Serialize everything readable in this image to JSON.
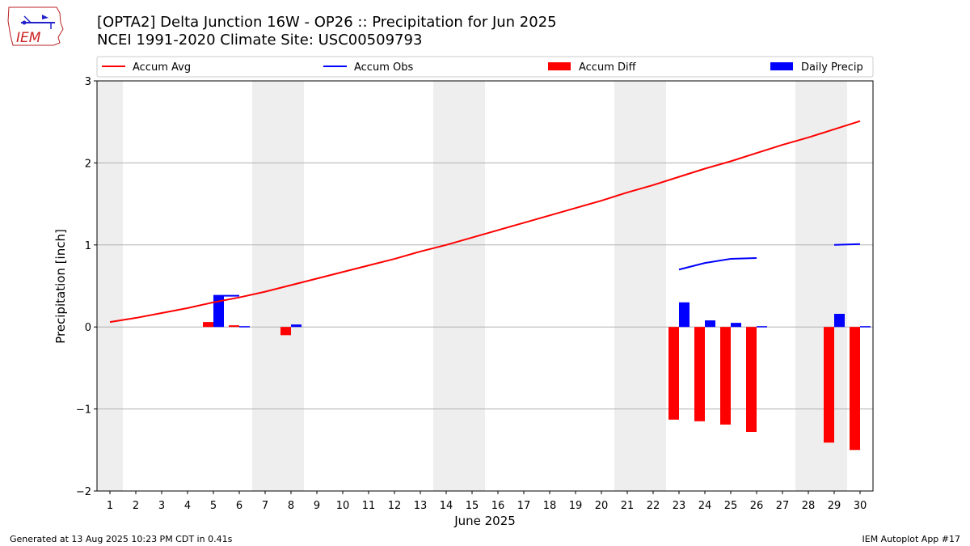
{
  "logo": {
    "text": "IEM"
  },
  "title_line1": "[OPTA2] Delta Junction 16W - OP26 :: Precipitation for Jun 2025",
  "title_line2": "NCEI 1991-2020 Climate Site: USC00509793",
  "footer": {
    "left": "Generated at 13 Aug 2025 10:23 PM CDT in 0.41s",
    "right": "IEM Autoplot App #17"
  },
  "colors": {
    "avg": "#ff0000",
    "obs": "#0000ff",
    "diff": "#ff0000",
    "precip": "#0000ff",
    "weekend_shade": "#eeeeee"
  },
  "chart_data": {
    "type": "bar",
    "xlabel": "June 2025",
    "ylabel": "Precipitation [inch]",
    "ylim": [
      -2,
      3
    ],
    "yticks": [
      -2,
      -1,
      0,
      1,
      2,
      3
    ],
    "ytick_labels": [
      "−2",
      "−1",
      "0",
      "1",
      "2",
      "3"
    ],
    "days": [
      1,
      2,
      3,
      4,
      5,
      6,
      7,
      8,
      9,
      10,
      11,
      12,
      13,
      14,
      15,
      16,
      17,
      18,
      19,
      20,
      21,
      22,
      23,
      24,
      25,
      26,
      27,
      28,
      29,
      30
    ],
    "grid": "horizontal",
    "legend_position": "top",
    "shaded_day_ranges": [
      [
        0.5,
        1.5
      ],
      [
        6.5,
        8.5
      ],
      [
        13.5,
        15.5
      ],
      [
        20.5,
        22.5
      ],
      [
        27.5,
        29.5
      ]
    ],
    "series": [
      {
        "name": "Accum Avg",
        "kind": "line",
        "color": "#ff0000",
        "values": [
          0.06,
          0.11,
          0.17,
          0.23,
          0.3,
          0.36,
          0.43,
          0.51,
          0.59,
          0.67,
          0.75,
          0.83,
          0.92,
          1.0,
          1.09,
          1.18,
          1.27,
          1.36,
          1.45,
          1.54,
          1.64,
          1.73,
          1.83,
          1.93,
          2.02,
          2.12,
          2.22,
          2.31,
          2.41,
          2.51
        ]
      },
      {
        "name": "Accum Obs",
        "kind": "line",
        "color": "#0000ff",
        "values": [
          null,
          null,
          null,
          null,
          0.38,
          0.38,
          null,
          null,
          null,
          null,
          null,
          null,
          null,
          null,
          null,
          null,
          null,
          null,
          null,
          null,
          null,
          null,
          0.7,
          0.78,
          0.83,
          0.84,
          null,
          null,
          1.0,
          1.01
        ]
      },
      {
        "name": "Accum Diff",
        "kind": "bar",
        "color": "#ff0000",
        "values": [
          null,
          null,
          null,
          null,
          0.06,
          0.02,
          null,
          -0.1,
          null,
          null,
          null,
          null,
          null,
          null,
          null,
          null,
          null,
          null,
          null,
          null,
          null,
          null,
          -1.13,
          -1.15,
          -1.19,
          -1.28,
          null,
          null,
          -1.41,
          -1.5
        ]
      },
      {
        "name": "Daily Precip",
        "kind": "bar",
        "color": "#0000ff",
        "values": [
          null,
          null,
          null,
          null,
          0.38,
          0.01,
          null,
          0.03,
          null,
          null,
          null,
          null,
          null,
          null,
          null,
          null,
          null,
          null,
          null,
          null,
          null,
          null,
          0.3,
          0.08,
          0.05,
          0.01,
          null,
          null,
          0.16,
          0.01
        ]
      }
    ]
  }
}
